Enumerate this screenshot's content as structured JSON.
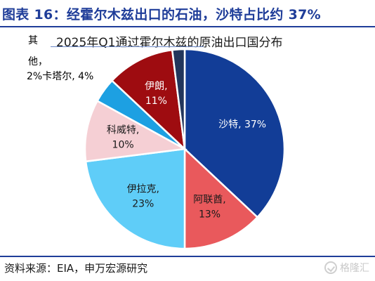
{
  "header": {
    "title": "图表 16：经霍尔木兹出口的石油，沙特占比约 37%"
  },
  "footer": {
    "source": "资料来源：EIA，申万宏源研究",
    "watermark": "格隆汇"
  },
  "chart_data": {
    "type": "pie",
    "title": "2025年Q1通过霍尔木兹的原油出口国分布",
    "slices": [
      {
        "name": "沙特",
        "value": 37,
        "label_lines": [
          "沙特, 37%"
        ],
        "color": "#123d97",
        "text_color": "#ffffff"
      },
      {
        "name": "阿联酋",
        "value": 13,
        "label_lines": [
          "阿联酋,",
          "13%"
        ],
        "color": "#e9595c",
        "text_color": "#1a1a1a"
      },
      {
        "name": "伊拉克",
        "value": 23,
        "label_lines": [
          "伊拉克,",
          "23%"
        ],
        "color": "#5fcdf8",
        "text_color": "#1a1a1a"
      },
      {
        "name": "科威特",
        "value": 10,
        "label_lines": [
          "科威特,",
          "10%"
        ],
        "color": "#f5cfd4",
        "text_color": "#1a1a1a"
      },
      {
        "name": "卡塔尔",
        "value": 4,
        "label_lines": [],
        "color": "#1da0e2",
        "text_color": "#1a1a1a"
      },
      {
        "name": "伊朗",
        "value": 11,
        "label_lines": [
          "伊朗,",
          "11%"
        ],
        "color": "#9e0c10",
        "text_color": "#ffffff"
      },
      {
        "name": "其他",
        "value": 2,
        "label_lines": [],
        "color": "#22365c",
        "text_color": "#1a1a1a"
      }
    ],
    "outside_labels": [
      {
        "text": "其"
      },
      {
        "text": "他，"
      },
      {
        "text": "2%卡塔尔, 4%"
      }
    ],
    "legend": "none"
  }
}
